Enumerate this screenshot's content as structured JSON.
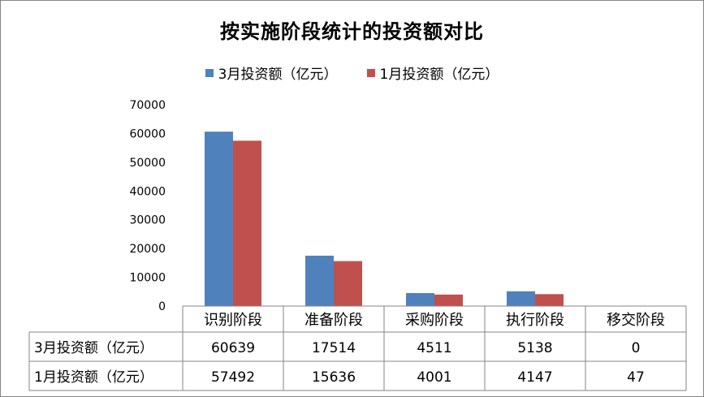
{
  "chart_data": {
    "type": "bar",
    "title": "按实施阶段统计的投资额对比",
    "categories": [
      "识别阶段",
      "准备阶段",
      "采购阶段",
      "执行阶段",
      "移交阶段"
    ],
    "series": [
      {
        "name": "3月投资额（亿元）",
        "color": "#4F81BD",
        "values": [
          60639,
          17514,
          4511,
          5138,
          0
        ]
      },
      {
        "name": "1月投资额（亿元）",
        "color": "#C0504D",
        "values": [
          57492,
          15636,
          4001,
          4147,
          47
        ]
      }
    ],
    "yticks": [
      "0",
      "10000",
      "20000",
      "30000",
      "40000",
      "50000",
      "60000",
      "70000"
    ],
    "ylim": [
      0,
      70000
    ],
    "grid": false,
    "legend": "top",
    "data_table": true,
    "xlabel": "",
    "ylabel": ""
  }
}
